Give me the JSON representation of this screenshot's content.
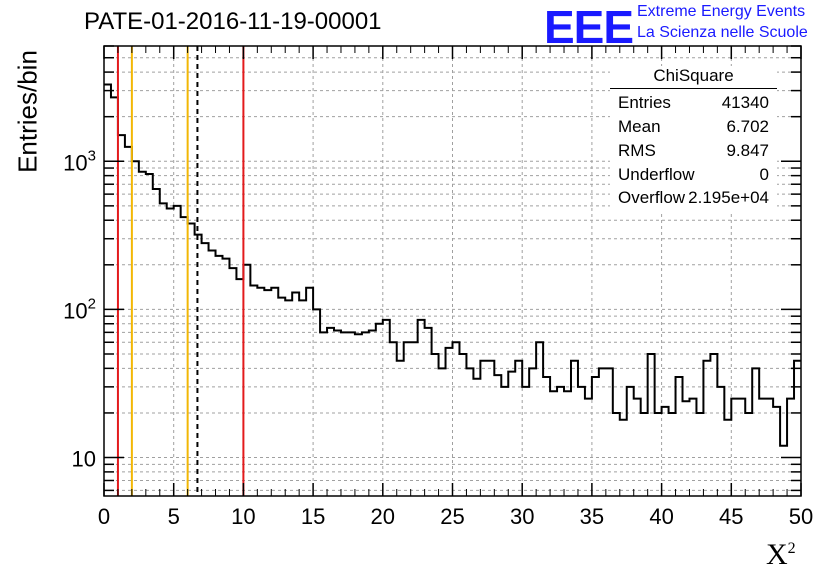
{
  "header": {
    "title": "PATE-01-2016-11-19-00001"
  },
  "logo": {
    "mark": "EEE",
    "line1": "Extreme Energy Events",
    "line2": "La Scienza nelle Scuole"
  },
  "stats_box": {
    "title": "ChiSquare",
    "rows": [
      {
        "label": "Entries",
        "value": "41340"
      },
      {
        "label": "Mean",
        "value": "6.702"
      },
      {
        "label": "RMS",
        "value": "9.847"
      },
      {
        "label": "Underflow",
        "value": "0"
      },
      {
        "label": "Overflow",
        "value": "2.195e+04"
      }
    ]
  },
  "colors": {
    "red": "#e31a1c",
    "orange": "#f2b705",
    "line": "#000000",
    "grid": "#a0a0a0"
  },
  "chart_data": {
    "type": "histogram",
    "title": "PATE-01-2016-11-19-00001",
    "xlabel": "X",
    "xlabel_sup": "2",
    "ylabel": "Entries/bin",
    "yscale": "log",
    "xlim": [
      0,
      50
    ],
    "ylim": [
      5.5,
      6000
    ],
    "grid": true,
    "bin_width": 0.5,
    "x_ticks": [
      0,
      5,
      10,
      15,
      20,
      25,
      30,
      35,
      40,
      45,
      50
    ],
    "y_ticks": [
      {
        "value": 10,
        "base": "10",
        "exp": ""
      },
      {
        "value": 100,
        "base": "10",
        "exp": "2"
      },
      {
        "value": 1000,
        "base": "10",
        "exp": "3"
      }
    ],
    "values": [
      3300,
      2700,
      1500,
      1250,
      1000,
      850,
      820,
      650,
      520,
      480,
      500,
      420,
      380,
      320,
      280,
      250,
      230,
      220,
      190,
      160,
      200,
      145,
      140,
      135,
      140,
      120,
      115,
      130,
      115,
      140,
      100,
      70,
      75,
      72,
      70,
      70,
      68,
      70,
      72,
      80,
      85,
      60,
      45,
      60,
      60,
      85,
      75,
      50,
      40,
      55,
      60,
      50,
      40,
      34,
      45,
      45,
      36,
      30,
      38,
      45,
      30,
      40,
      60,
      35,
      28,
      30,
      28,
      45,
      30,
      25,
      35,
      40,
      40,
      20,
      18,
      30,
      25,
      20,
      50,
      20,
      22,
      20,
      35,
      24,
      25,
      20,
      45,
      50,
      30,
      18,
      25,
      25,
      20,
      40,
      25,
      25,
      22,
      12,
      25,
      45
    ],
    "vlines": [
      {
        "x": 1,
        "color": "red",
        "style": "solid"
      },
      {
        "x": 2,
        "color": "orange",
        "style": "solid"
      },
      {
        "x": 6,
        "color": "orange",
        "style": "solid"
      },
      {
        "x": 6.702,
        "color": "black",
        "style": "dashed"
      },
      {
        "x": 10,
        "color": "red",
        "style": "solid"
      }
    ]
  }
}
